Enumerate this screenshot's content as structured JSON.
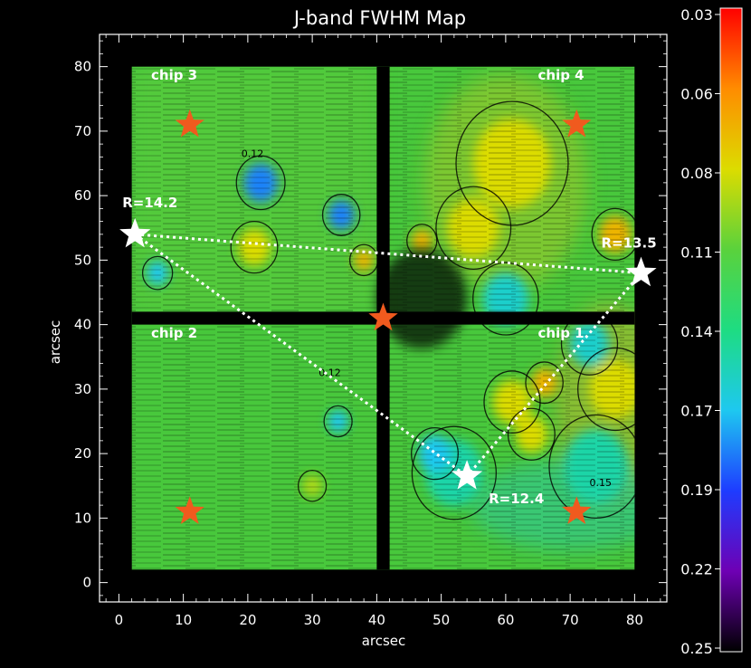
{
  "chart_data": {
    "type": "heatmap",
    "title": "J-band FWHM Map",
    "xlabel": "arcsec",
    "ylabel": "arcsec",
    "xlim": [
      -3,
      85
    ],
    "ylim": [
      -3,
      85
    ],
    "xticks": [
      0,
      10,
      20,
      30,
      40,
      50,
      60,
      70,
      80
    ],
    "yticks": [
      0,
      10,
      20,
      30,
      40,
      50,
      60,
      70,
      80
    ],
    "colorbar": {
      "tick_labels": [
        "0.03",
        "0.06",
        "0.08",
        "0.11",
        "0.14",
        "0.17",
        "0.19",
        "0.22",
        "0.25"
      ],
      "colors": [
        "#ff0000",
        "#ff8c00",
        "#dcdc00",
        "#5ad23c",
        "#1edc82",
        "#1ec8f0",
        "#1e3cff",
        "#6e00b4",
        "#000000"
      ]
    },
    "chips": [
      {
        "label": "chip 3",
        "x": 5,
        "y": 78
      },
      {
        "label": "chip 4",
        "x": 65,
        "y": 78
      },
      {
        "label": "chip 2",
        "x": 5,
        "y": 38
      },
      {
        "label": "chip 1",
        "x": 65,
        "y": 38
      }
    ],
    "guide_stars": [
      {
        "x": 11,
        "y": 71
      },
      {
        "x": 71,
        "y": 71
      },
      {
        "x": 41,
        "y": 41
      },
      {
        "x": 11,
        "y": 11
      },
      {
        "x": 71,
        "y": 11
      }
    ],
    "reference_stars": [
      {
        "x": 2.5,
        "y": 54,
        "label": "R=14.2"
      },
      {
        "x": 81,
        "y": 48,
        "label": "R=13.5"
      },
      {
        "x": 54,
        "y": 16.5,
        "label": "R=12.4"
      }
    ],
    "contour_labels": [
      {
        "x": 19,
        "y": 66,
        "text": "0.12"
      },
      {
        "x": 31,
        "y": 32,
        "text": "0.12"
      },
      {
        "x": 73,
        "y": 15,
        "text": "0.15"
      }
    ],
    "blobs": [
      {
        "x": 22,
        "y": 62,
        "r": 2.6,
        "value": 0.18
      },
      {
        "x": 34.5,
        "y": 57,
        "r": 2,
        "value": 0.18
      },
      {
        "x": 21,
        "y": 52,
        "r": 2.5,
        "value": 0.08
      },
      {
        "x": 6,
        "y": 48,
        "r": 1.6,
        "value": 0.17
      },
      {
        "x": 38,
        "y": 50,
        "r": 1.5,
        "value": 0.07
      },
      {
        "x": 34,
        "y": 25,
        "r": 1.5,
        "value": 0.17
      },
      {
        "x": 30,
        "y": 15,
        "r": 1.5,
        "value": 0.09
      },
      {
        "x": 60,
        "y": 44,
        "r": 3.5,
        "value": 0.16
      },
      {
        "x": 61,
        "y": 28,
        "r": 3,
        "value": 0.08
      },
      {
        "x": 52,
        "y": 17,
        "r": 4.5,
        "value": 0.15
      },
      {
        "x": 49,
        "y": 20,
        "r": 2.5,
        "value": 0.17
      },
      {
        "x": 73,
        "y": 37,
        "r": 3,
        "value": 0.16
      },
      {
        "x": 74,
        "y": 18,
        "r": 5,
        "value": 0.15
      },
      {
        "x": 64,
        "y": 23,
        "r": 2.5,
        "value": 0.08
      },
      {
        "x": 66,
        "y": 31,
        "r": 2,
        "value": 0.07
      },
      {
        "x": 77,
        "y": 30,
        "r": 4,
        "value": 0.08
      },
      {
        "x": 77,
        "y": 54,
        "r": 2.5,
        "value": 0.07
      },
      {
        "x": 61,
        "y": 65,
        "r": 6,
        "value": 0.08
      },
      {
        "x": 55,
        "y": 55,
        "r": 4,
        "value": 0.08
      },
      {
        "x": 47,
        "y": 53,
        "r": 1.6,
        "value": 0.07
      }
    ]
  }
}
